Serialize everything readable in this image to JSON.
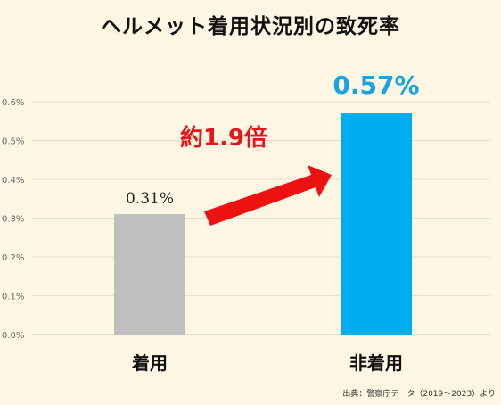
{
  "chart_data": {
    "type": "bar",
    "title": "ヘルメット着用状況別の致死率",
    "categories": [
      "着用",
      "非着用"
    ],
    "values": [
      0.31,
      0.57
    ],
    "value_labels": [
      "0.31%",
      "0.57%"
    ],
    "yticks": [
      "0.0%",
      "0.1%",
      "0.2%",
      "0.3%",
      "0.4%",
      "0.5%",
      "0.6%"
    ],
    "ylim": [
      0,
      0.6
    ],
    "grid": true,
    "annotation": "約1.9倍",
    "source": "出典：警察庁データ（2019〜2023）より",
    "colors": [
      "#bfbfbf",
      "#00aeef"
    ],
    "annotation_color": "#e8141c"
  }
}
